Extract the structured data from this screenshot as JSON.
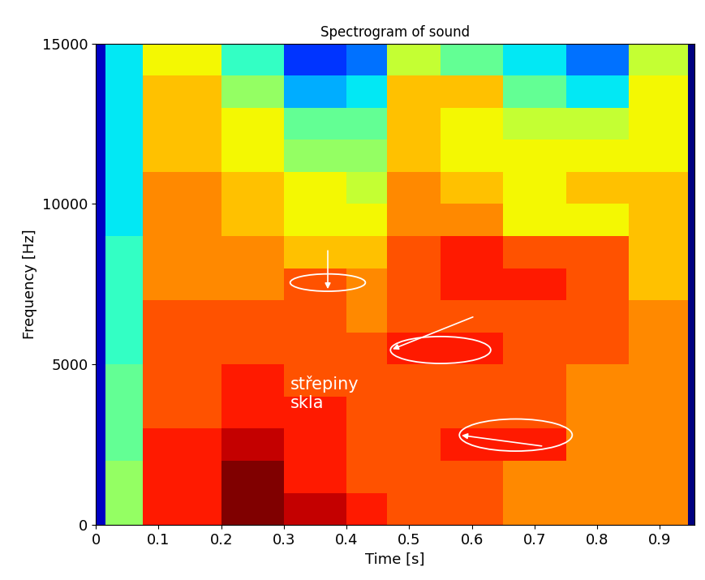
{
  "chart_data": {
    "type": "heatmap",
    "title": "Spectrogram of sound",
    "x_label": "Time [s]",
    "y_label": "Frequency [Hz]",
    "x_edges": [
      0,
      0.015,
      0.075,
      0.2,
      0.3,
      0.4,
      0.465,
      0.55,
      0.65,
      0.75,
      0.85,
      0.945,
      0.955
    ],
    "y_edges": [
      0,
      1000,
      2000,
      3000,
      4000,
      5000,
      6000,
      7000,
      8000,
      9000,
      10000,
      11000,
      12000,
      13000,
      14000,
      15000
    ],
    "cells": [
      [
        1.5,
        5.5,
        8.5,
        9.5,
        9,
        8.5,
        8,
        8,
        7.5,
        7.5,
        7.5,
        1
      ],
      [
        1.5,
        5.5,
        8.5,
        9.5,
        8.5,
        8,
        8,
        8,
        7.5,
        7.5,
        7.5,
        1
      ],
      [
        1.5,
        5,
        8.5,
        9,
        8.5,
        8,
        8,
        8.5,
        8.5,
        7.5,
        7.5,
        1
      ],
      [
        1.5,
        5,
        8,
        8.5,
        8.5,
        8,
        8,
        8,
        8,
        7.5,
        7.5,
        1
      ],
      [
        1.5,
        5,
        8,
        8.5,
        8,
        8,
        8,
        8,
        8,
        7.5,
        7.5,
        1
      ],
      [
        1.5,
        4.5,
        8,
        8,
        8,
        8,
        8.5,
        8.5,
        8,
        8,
        7.5,
        1
      ],
      [
        1.5,
        4.5,
        8,
        8,
        8,
        7.5,
        8,
        8,
        8,
        8,
        7.5,
        1
      ],
      [
        1.5,
        4.5,
        7.5,
        7.5,
        8,
        7.5,
        8,
        8.5,
        8.5,
        8,
        7,
        1
      ],
      [
        1.5,
        4.5,
        7.5,
        7.5,
        7,
        7,
        8,
        8.5,
        8,
        8,
        7,
        1
      ],
      [
        1.5,
        4,
        7.5,
        7,
        6.5,
        6.5,
        7.5,
        7.5,
        6.5,
        6.5,
        7,
        1
      ],
      [
        1.5,
        4,
        7.5,
        7,
        6.5,
        6,
        7.5,
        7,
        6.5,
        7,
        7,
        1
      ],
      [
        1.5,
        4,
        7,
        6.5,
        5.5,
        5.5,
        7,
        6.5,
        6.5,
        6.5,
        6.5,
        1
      ],
      [
        1.5,
        4,
        7,
        6.5,
        5,
        5,
        7,
        6.5,
        6,
        6,
        6.5,
        1
      ],
      [
        1.5,
        4,
        7,
        5.5,
        3.5,
        4,
        7,
        7,
        5,
        4,
        6.5,
        1
      ],
      [
        1.5,
        4,
        6.5,
        4.5,
        2.5,
        3,
        6,
        5,
        4,
        3,
        6,
        1
      ]
    ],
    "xlim": [
      0,
      0.955
    ],
    "xticks": [
      0,
      0.1,
      0.2,
      0.3,
      0.4,
      0.5,
      0.6,
      0.7,
      0.8,
      0.9
    ],
    "ylim": [
      0,
      15000
    ],
    "yticks": [
      0,
      5000,
      10000,
      15000
    ],
    "annotation": {
      "text": "střepiny\nskla",
      "x": 0.31,
      "y": 4100
    },
    "regions": [
      {
        "x": [
          0.31,
          0.43
        ],
        "y": [
          7280,
          7820
        ]
      },
      {
        "x": [
          0.47,
          0.63
        ],
        "y": [
          5030,
          5870
        ]
      },
      {
        "x": [
          0.58,
          0.76
        ],
        "y": [
          2300,
          3300
        ]
      }
    ]
  }
}
